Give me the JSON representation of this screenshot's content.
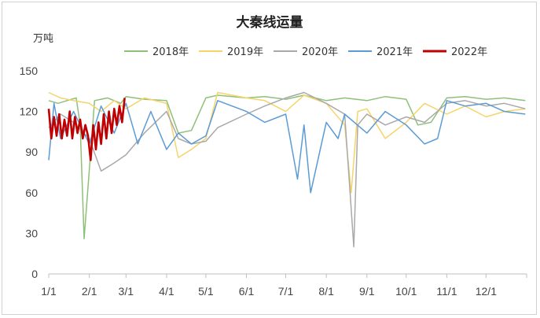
{
  "chart_data": {
    "type": "line",
    "title": "大秦线运量",
    "ylabel": "万吨",
    "xlabel": "",
    "ylim": [
      0,
      150
    ],
    "yticks": [
      0,
      30,
      60,
      90,
      120,
      150
    ],
    "x_categories": [
      "1/1",
      "2/1",
      "3/1",
      "4/1",
      "5/1",
      "6/1",
      "7/1",
      "8/1",
      "9/1",
      "10/1",
      "11/1",
      "12/1"
    ],
    "legend_position": "top",
    "grid": false,
    "series": [
      {
        "name": "2018年",
        "color": "#8fc07a",
        "x": [
          "1/1",
          "1/8",
          "1/15",
          "1/22",
          "1/25",
          "1/28",
          "2/5",
          "2/15",
          "2/25",
          "3/1",
          "3/15",
          "4/1",
          "4/10",
          "4/20",
          "5/1",
          "5/10",
          "6/1",
          "6/15",
          "7/1",
          "7/15",
          "8/1",
          "8/15",
          "9/1",
          "9/15",
          "10/1",
          "10/10",
          "10/20",
          "11/1",
          "11/15",
          "12/1",
          "12/15",
          "12/31"
        ],
        "y": [
          128,
          126,
          128,
          130,
          110,
          26,
          128,
          130,
          126,
          131,
          129,
          128,
          104,
          106,
          130,
          132,
          130,
          131,
          129,
          132,
          128,
          130,
          128,
          131,
          129,
          110,
          112,
          130,
          131,
          129,
          130,
          128
        ]
      },
      {
        "name": "2019年",
        "color": "#f5d46a",
        "x": [
          "1/1",
          "1/10",
          "1/20",
          "2/1",
          "2/10",
          "2/20",
          "3/1",
          "3/15",
          "4/1",
          "4/10",
          "4/20",
          "5/1",
          "5/10",
          "6/1",
          "6/15",
          "7/1",
          "7/15",
          "8/1",
          "8/15",
          "8/20",
          "8/25",
          "9/1",
          "9/15",
          "10/1",
          "10/15",
          "11/1",
          "11/15",
          "12/1",
          "12/15",
          "12/31"
        ],
        "y": [
          134,
          130,
          128,
          126,
          120,
          128,
          122,
          130,
          126,
          86,
          92,
          100,
          134,
          130,
          128,
          120,
          132,
          126,
          110,
          60,
          120,
          122,
          100,
          112,
          126,
          118,
          124,
          116,
          120,
          122
        ]
      },
      {
        "name": "2020年",
        "color": "#a9a9a9",
        "x": [
          "1/1",
          "1/10",
          "1/20",
          "2/1",
          "2/10",
          "2/20",
          "3/1",
          "3/15",
          "4/1",
          "4/10",
          "4/20",
          "5/1",
          "5/10",
          "6/1",
          "6/15",
          "7/1",
          "7/15",
          "8/1",
          "8/15",
          "8/22",
          "8/25",
          "9/1",
          "9/15",
          "10/1",
          "10/15",
          "11/1",
          "11/15",
          "12/1",
          "12/15",
          "12/31"
        ],
        "y": [
          108,
          118,
          112,
          100,
          76,
          82,
          88,
          104,
          120,
          100,
          96,
          98,
          108,
          118,
          124,
          130,
          134,
          126,
          118,
          20,
          110,
          118,
          110,
          116,
          112,
          126,
          128,
          124,
          126,
          122
        ]
      },
      {
        "name": "2021年",
        "color": "#5b9bd5",
        "x": [
          "1/1",
          "1/5",
          "1/10",
          "1/20",
          "2/1",
          "2/10",
          "2/20",
          "3/1",
          "3/10",
          "3/20",
          "4/1",
          "4/10",
          "4/20",
          "5/1",
          "5/10",
          "6/1",
          "6/15",
          "7/1",
          "7/10",
          "7/15",
          "7/20",
          "8/1",
          "8/10",
          "8/15",
          "9/1",
          "9/15",
          "10/1",
          "10/15",
          "10/25",
          "11/1",
          "11/15",
          "12/1",
          "12/15",
          "12/31"
        ],
        "y": [
          84,
          126,
          100,
          120,
          96,
          124,
          104,
          126,
          96,
          120,
          92,
          104,
          96,
          102,
          128,
          120,
          112,
          118,
          70,
          110,
          60,
          112,
          100,
          118,
          104,
          120,
          110,
          96,
          100,
          128,
          124,
          126,
          120,
          118
        ]
      },
      {
        "name": "2022年",
        "color": "#c00000",
        "x": [
          "1/1",
          "1/3",
          "1/5",
          "1/7",
          "1/9",
          "1/11",
          "1/13",
          "1/15",
          "1/17",
          "1/19",
          "1/21",
          "1/23",
          "1/25",
          "1/27",
          "1/29",
          "1/31",
          "2/2",
          "2/4",
          "2/6",
          "2/8",
          "2/10",
          "2/12",
          "2/14",
          "2/16",
          "2/18",
          "2/20",
          "2/22",
          "2/24",
          "2/26",
          "2/28"
        ],
        "y": [
          122,
          100,
          116,
          102,
          118,
          100,
          114,
          102,
          120,
          100,
          116,
          104,
          114,
          100,
          110,
          102,
          84,
          110,
          92,
          112,
          96,
          118,
          100,
          120,
          104,
          122,
          110,
          124,
          112,
          130
        ]
      }
    ]
  }
}
